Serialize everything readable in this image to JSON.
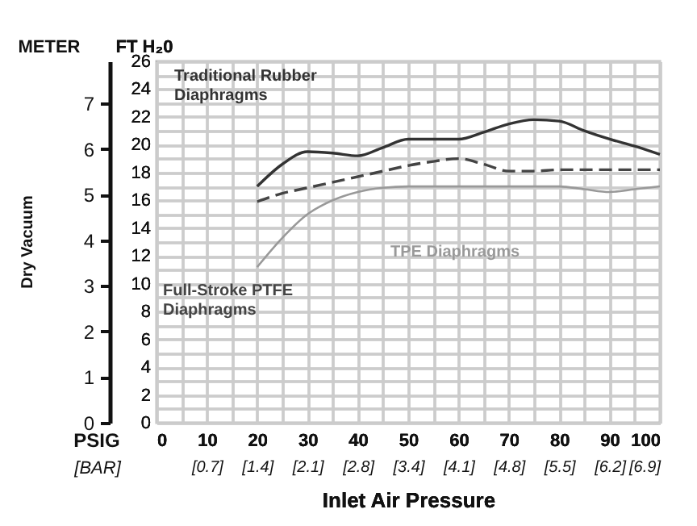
{
  "chart_data": {
    "type": "line",
    "xlabel": "Inlet Air Pressure",
    "ylabel": "FT H₂0",
    "y2label": "METER",
    "annotations": [
      "Dry Vacuum",
      "PSIG"
    ],
    "x2label": "[BAR]",
    "x2lim": [
      0,
      6.9
    ],
    "x2ticks": [
      {
        "value": 0.69,
        "label": "[0.7]"
      },
      {
        "value": 1.38,
        "label": "[1.4]"
      },
      {
        "value": 2.07,
        "label": "[2.1]"
      },
      {
        "value": 2.76,
        "label": "[2.8]"
      },
      {
        "value": 3.45,
        "label": "[3.4]"
      },
      {
        "value": 4.14,
        "label": "[4.1]"
      },
      {
        "value": 4.83,
        "label": "[4.8]"
      },
      {
        "value": 5.52,
        "label": "[5.5]"
      },
      {
        "value": 6.21,
        "label": "[6.2]"
      },
      {
        "value": 6.9,
        "label": "[6.9]"
      }
    ],
    "series": [
      {
        "name": "Traditional Rubber Diaphragms",
        "color": "#333333",
        "line_style": "solid",
        "x": [
          20,
          25,
          30,
          35,
          40,
          45,
          50,
          55,
          60,
          65,
          70,
          75,
          80,
          85,
          90,
          95,
          100
        ],
        "values": [
          17.0,
          18.6,
          19.5,
          19.4,
          19.2,
          19.8,
          20.4,
          20.4,
          20.4,
          20.9,
          21.5,
          21.8,
          21.7,
          21.0,
          20.4,
          19.9,
          19.3
        ]
      },
      {
        "name": "Full-Stroke PTFE Diaphragms",
        "color": "#444444",
        "line_style": "dashed",
        "x": [
          20,
          25,
          30,
          35,
          40,
          45,
          50,
          55,
          60,
          65,
          70,
          75,
          80,
          90,
          100
        ],
        "values": [
          15.9,
          16.5,
          16.9,
          17.3,
          17.7,
          18.1,
          18.5,
          18.8,
          19.0,
          18.6,
          18.1,
          18.1,
          18.2,
          18.2,
          18.2
        ]
      },
      {
        "name": "TPE Diaphragms",
        "color": "#999999",
        "line_style": "solid",
        "x": [
          20,
          25,
          30,
          35,
          40,
          45,
          50,
          60,
          70,
          80,
          85,
          90,
          95,
          100
        ],
        "values": [
          11.2,
          13.3,
          15.0,
          16.0,
          16.6,
          16.9,
          17.0,
          17.0,
          17.0,
          17.0,
          16.8,
          16.6,
          16.8,
          17.0
        ]
      }
    ],
    "xlim": [
      0,
      100
    ],
    "xticks": [
      0,
      {
        "value": 5,
        "label": null
      },
      10,
      {
        "value": 15,
        "label": null
      },
      20,
      {
        "value": 25,
        "label": null
      },
      30,
      {
        "value": 35,
        "label": null
      },
      40,
      {
        "value": 45,
        "label": null
      },
      50,
      {
        "value": 55,
        "label": null
      },
      60,
      {
        "value": 65,
        "label": null
      },
      70,
      {
        "value": 75,
        "label": null
      },
      80,
      {
        "value": 85,
        "label": null
      },
      90,
      {
        "value": 95,
        "label": null
      },
      100
    ],
    "ylim": [
      0,
      26
    ],
    "yticks": [
      0,
      {
        "value": 1,
        "label": null
      },
      2,
      {
        "value": 3,
        "label": null
      },
      4,
      {
        "value": 5,
        "label": null
      },
      6,
      {
        "value": 7,
        "label": null
      },
      8,
      {
        "value": 9,
        "label": null
      },
      10,
      {
        "value": 11,
        "label": null
      },
      12,
      {
        "value": 13,
        "label": null
      },
      14,
      {
        "value": 15,
        "label": null
      },
      16,
      {
        "value": 17,
        "label": null
      },
      18,
      {
        "value": 19,
        "label": null
      },
      20,
      {
        "value": 21,
        "label": null
      },
      22,
      {
        "value": 23,
        "label": null
      },
      24,
      {
        "value": 25,
        "label": null
      },
      26
    ],
    "y2lim": [
      0,
      7.925
    ],
    "y2ticks": [
      0,
      1,
      2,
      3,
      4,
      5,
      6,
      7
    ],
    "grid": true
  }
}
